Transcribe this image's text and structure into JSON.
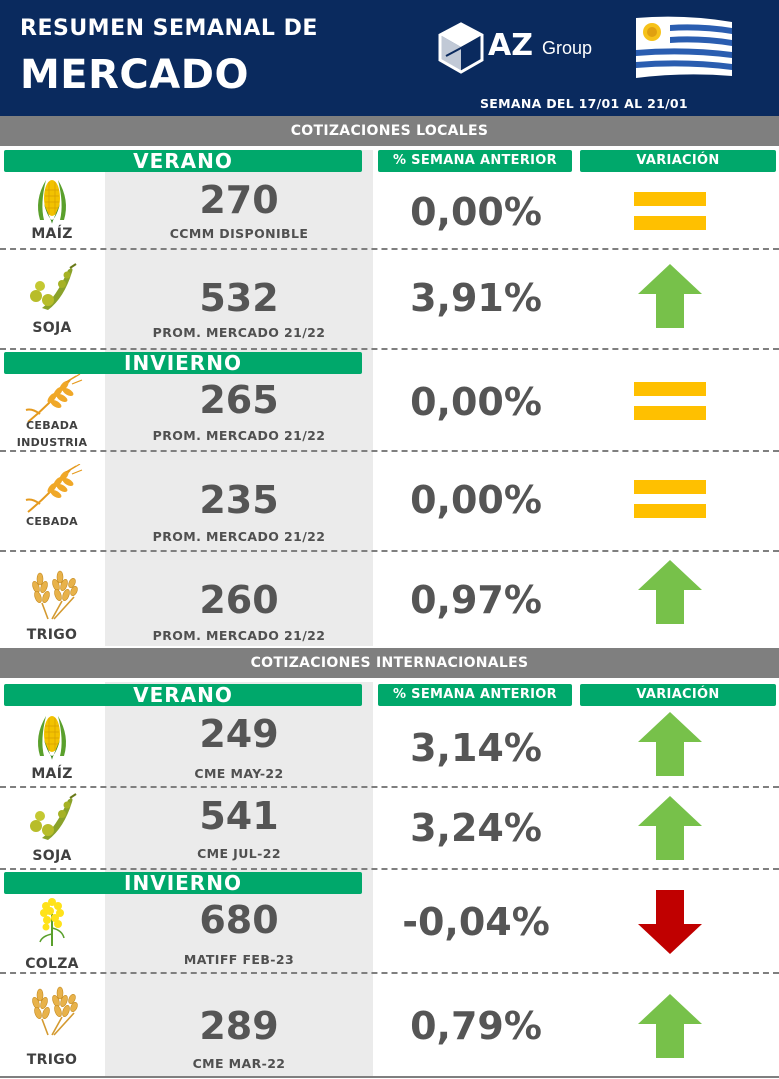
{
  "header": {
    "title_line1": "RESUMEN SEMANAL DE",
    "title_line2": "MERCADO",
    "logo_main": "AZ",
    "logo_sub": "Group",
    "week": "SEMANA DEL  17/01 AL 21/01"
  },
  "colors": {
    "header_bg": "#0a2a5e",
    "section_bar": "#7f7f7f",
    "green_label": "#00a86b",
    "price_col_bg": "#ebebeb",
    "arrow_up": "#77c14a",
    "arrow_down": "#c00000",
    "equal_sign": "#ffc000"
  },
  "local": {
    "section_title": "COTIZACIONES LOCALES",
    "col_pct": "% SEMANA ANTERIOR",
    "col_var": "VARIACIÓN",
    "verano_label": "VERANO",
    "invierno_label": "INVIERNO",
    "rows": [
      {
        "crop": "MAÍZ",
        "icon": "corn-icon",
        "price": "270",
        "sub": "CCMM DISPONIBLE",
        "pct": "0,00%",
        "var": "equal"
      },
      {
        "crop": "SOJA",
        "icon": "soybean-icon",
        "price": "532",
        "sub": "PROM. MERCADO 21/22",
        "pct": "3,91%",
        "var": "up"
      },
      {
        "crop_l1": "CEBADA",
        "crop_l2": "INDUSTRIA",
        "icon": "barley-icon",
        "price": "265",
        "sub": "PROM. MERCADO 21/22",
        "pct": "0,00%",
        "var": "equal"
      },
      {
        "crop": "CEBADA",
        "icon": "barley-icon",
        "price": "235",
        "sub": "PROM. MERCADO 21/22",
        "pct": "0,00%",
        "var": "equal"
      },
      {
        "crop": "TRIGO",
        "icon": "wheat-icon",
        "price": "260",
        "sub": "PROM. MERCADO 21/22",
        "pct": "0,97%",
        "var": "up"
      }
    ]
  },
  "international": {
    "section_title": "COTIZACIONES INTERNACIONALES",
    "col_pct": "% SEMANA ANTERIOR",
    "col_var": "VARIACIÓN",
    "verano_label": "VERANO",
    "invierno_label": "INVIERNO",
    "rows": [
      {
        "crop": "MAÍZ",
        "icon": "corn-icon",
        "price": "249",
        "sub": "CME MAY-22",
        "pct": "3,14%",
        "var": "up"
      },
      {
        "crop": "SOJA",
        "icon": "soybean-icon",
        "price": "541",
        "sub": "CME JUL-22",
        "pct": "3,24%",
        "var": "up"
      },
      {
        "crop": "COLZA",
        "icon": "rapeseed-icon",
        "price": "680",
        "sub": "MATIFF FEB-23",
        "pct": "-0,04%",
        "var": "down"
      },
      {
        "crop": "TRIGO",
        "icon": "wheat-icon",
        "price": "289",
        "sub": "CME MAR-22",
        "pct": "0,79%",
        "var": "up"
      }
    ]
  }
}
